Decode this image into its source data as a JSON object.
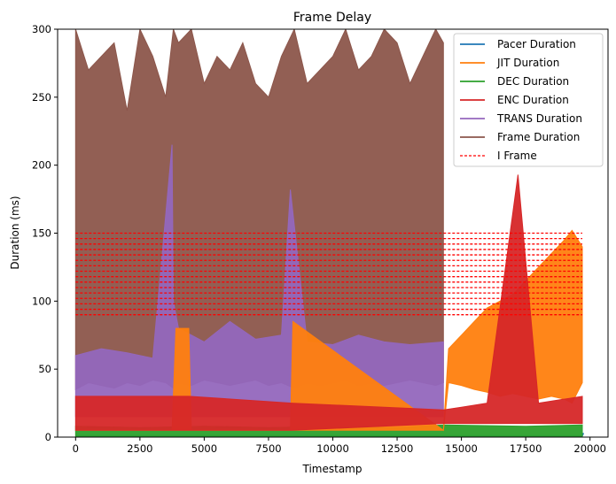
{
  "chart_data": {
    "type": "line",
    "title": "Frame Delay",
    "xlabel": "Timestamp",
    "ylabel": "Duration (ms)",
    "xlim": [
      -700,
      20700
    ],
    "ylim": [
      0,
      300
    ],
    "x_ticks": [
      0,
      2500,
      5000,
      7500,
      10000,
      12500,
      15000,
      17500,
      20000
    ],
    "y_ticks": [
      0,
      50,
      100,
      150,
      200,
      250,
      300
    ],
    "legend_position": "upper right",
    "grid": false,
    "series": [
      {
        "name": "Pacer Duration",
        "color": "#1f77b4",
        "x": [
          0,
          2000,
          4000,
          6000,
          8000,
          10000,
          12000,
          14300,
          16000,
          18000,
          19700,
          19750
        ],
        "values": [
          1,
          1,
          1,
          1,
          1,
          1,
          1,
          1,
          1,
          1,
          1,
          3
        ]
      },
      {
        "name": "JIT Duration",
        "color": "#ff7f0e",
        "x": [
          0,
          3750,
          3900,
          4400,
          4500,
          8350,
          8450,
          14300,
          14500,
          15000,
          15500,
          16000,
          16500,
          17000,
          17500,
          18000,
          18500,
          19000,
          19300,
          19700
        ],
        "values": [
          5,
          5,
          80,
          80,
          5,
          5,
          85,
          5,
          65,
          75,
          85,
          95,
          100,
          105,
          115,
          125,
          135,
          145,
          152,
          140
        ],
        "lower": [
          5,
          5,
          5,
          5,
          5,
          5,
          5,
          5,
          40,
          38,
          35,
          33,
          30,
          32,
          30,
          28,
          30,
          28,
          25,
          40
        ]
      },
      {
        "name": "DEC Duration",
        "color": "#2ca02c",
        "x": [
          0,
          2500,
          5000,
          7500,
          10000,
          12500,
          14300,
          17500,
          19700
        ],
        "values": [
          8,
          7,
          8,
          7,
          8,
          7,
          9,
          8,
          9
        ],
        "lower": [
          0,
          0,
          0,
          0,
          0,
          0,
          0,
          0,
          0
        ]
      },
      {
        "name": "ENC Duration",
        "color": "#d62728",
        "x": [
          0,
          3800,
          4400,
          8400,
          14300,
          15000,
          16000,
          17200,
          18000,
          19700
        ],
        "values": [
          30,
          30,
          30,
          25,
          20,
          22,
          25,
          193,
          25,
          30
        ],
        "lower": [
          5,
          5,
          5,
          5,
          10,
          10,
          10,
          10,
          10,
          10
        ]
      },
      {
        "name": "TRANS Duration",
        "color": "#9467bd",
        "x": [
          0,
          1000,
          2000,
          3000,
          3750,
          3800,
          4000,
          5000,
          6000,
          7000,
          8000,
          8350,
          9000,
          10000,
          11000,
          12000,
          13000,
          14300
        ],
        "values": [
          60,
          65,
          62,
          58,
          215,
          100,
          80,
          70,
          85,
          72,
          75,
          182,
          70,
          68,
          75,
          70,
          68,
          70
        ],
        "lower": [
          15,
          15,
          15,
          15,
          15,
          15,
          15,
          15,
          15,
          15,
          15,
          15,
          15,
          15,
          15,
          15,
          15,
          15
        ]
      },
      {
        "name": "Frame Duration",
        "color": "#8c564b",
        "x": [
          0,
          500,
          1000,
          1500,
          2000,
          2500,
          3000,
          3500,
          3800,
          4000,
          4500,
          5000,
          5500,
          6000,
          6500,
          7000,
          7500,
          8000,
          8500,
          9000,
          9500,
          10000,
          10500,
          11000,
          11500,
          12000,
          12500,
          13000,
          13500,
          14000,
          14300
        ],
        "values": [
          300,
          270,
          280,
          290,
          240,
          300,
          280,
          250,
          300,
          290,
          300,
          260,
          280,
          270,
          290,
          260,
          250,
          280,
          300,
          260,
          270,
          280,
          300,
          270,
          280,
          300,
          290,
          260,
          280,
          300,
          290
        ],
        "lower": [
          35,
          40,
          38,
          36,
          40,
          38,
          42,
          40,
          36,
          40,
          38,
          42,
          40,
          38,
          40,
          42,
          38,
          40,
          36,
          40,
          38,
          40,
          42,
          38,
          40,
          38,
          40,
          42,
          40,
          38,
          40
        ]
      },
      {
        "name": "I Frame",
        "color": "#ff0000",
        "style": "dashed",
        "x": [
          0,
          19700
        ],
        "levels": [
          90,
          94,
          98,
          102,
          106,
          110,
          114,
          118,
          122,
          126,
          130,
          134,
          138,
          142,
          146,
          150
        ]
      }
    ]
  }
}
